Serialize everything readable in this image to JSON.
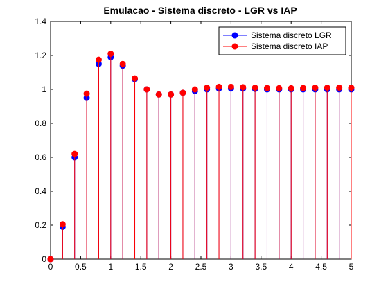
{
  "chart_data": {
    "type": "stem",
    "title": "Emulacao - Sistema discreto - LGR vs IAP",
    "xlabel": "",
    "ylabel": "",
    "xlim": [
      0,
      5
    ],
    "ylim": [
      0,
      1.4
    ],
    "xticks": [
      "0",
      "0.5",
      "1",
      "1.5",
      "2",
      "2.5",
      "3",
      "3.5",
      "4",
      "4.5",
      "5"
    ],
    "xtick_values": [
      0,
      0.5,
      1,
      1.5,
      2,
      2.5,
      3,
      3.5,
      4,
      4.5,
      5
    ],
    "yticks": [
      "0",
      "0.2",
      "0.4",
      "0.6",
      "0.8",
      "1",
      "1.2",
      "1.4"
    ],
    "ytick_values": [
      0,
      0.2,
      0.4,
      0.6,
      0.8,
      1.0,
      1.2,
      1.4
    ],
    "grid": false,
    "legend_position": "top-right",
    "x": [
      0,
      0.2,
      0.4,
      0.6,
      0.8,
      1.0,
      1.2,
      1.4,
      1.6,
      1.8,
      2.0,
      2.2,
      2.4,
      2.6,
      2.8,
      3.0,
      3.2,
      3.4,
      3.6,
      3.8,
      4.0,
      4.2,
      4.4,
      4.6,
      4.8,
      5.0
    ],
    "series": [
      {
        "name": "Sistema discreto LGR",
        "color": "#0000ff",
        "values": [
          0,
          0.19,
          0.6,
          0.95,
          1.15,
          1.19,
          1.14,
          1.06,
          1.0,
          0.97,
          0.97,
          0.98,
          0.99,
          1.0,
          1.005,
          1.005,
          1.005,
          1.003,
          1.0,
          1.0,
          1.0,
          1.0,
          1.0,
          1.0,
          1.0,
          1.0
        ]
      },
      {
        "name": "Sistema discreto IAP",
        "color": "#ff0000",
        "values": [
          0,
          0.205,
          0.62,
          0.975,
          1.175,
          1.21,
          1.15,
          1.065,
          1.0,
          0.97,
          0.97,
          0.98,
          1.0,
          1.01,
          1.015,
          1.015,
          1.013,
          1.01,
          1.008,
          1.007,
          1.007,
          1.008,
          1.01,
          1.01,
          1.01,
          1.01
        ]
      }
    ]
  }
}
